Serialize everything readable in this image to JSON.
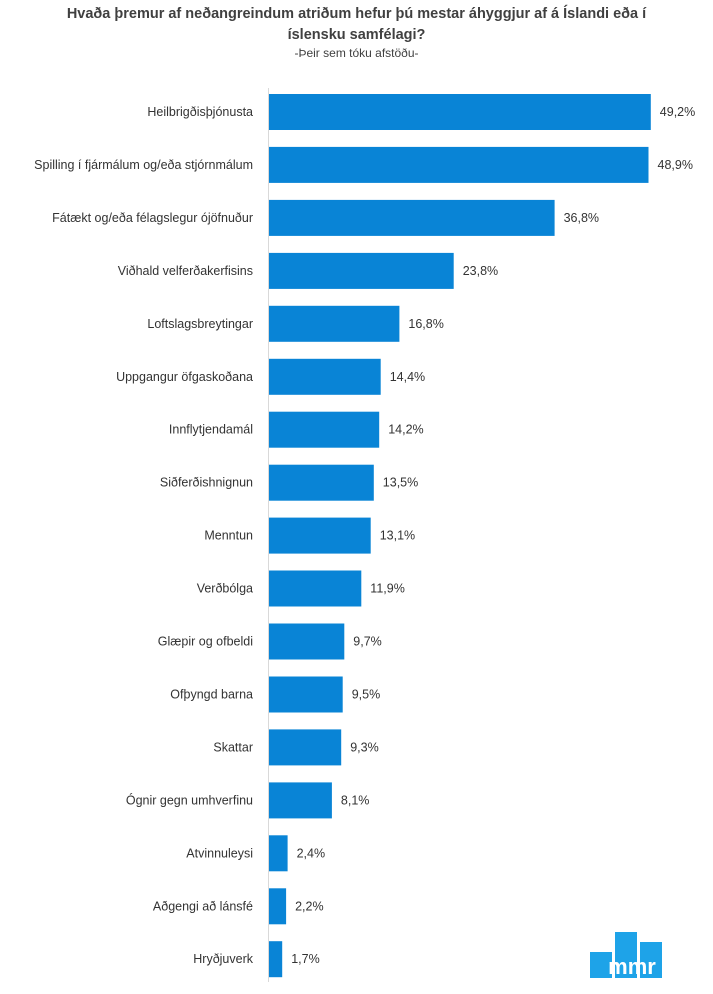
{
  "chart_data": {
    "type": "bar",
    "orientation": "horizontal",
    "title_lines": [
      "Hvaða þremur af neðangreindum atriðum hefur þú mestar áhyggjur af á Íslandi eða í",
      "íslensku samfélagi?"
    ],
    "subtitle": "-Þeir sem tóku afstöðu-",
    "categories": [
      "Heilbrigðisþjónusta",
      "Spilling í fjármálum og/eða stjórnmálum",
      "Fátækt og/eða félagslegur ójöfnuður",
      "Viðhald velferðakerfisins",
      "Loftslagsbreytingar",
      "Uppgangur öfgaskoðana",
      "Innflytjendamál",
      "Siðferðishnignun",
      "Menntun",
      "Verðbólga",
      "Glæpir og ofbeldi",
      "Ofþyngd barna",
      "Skattar",
      "Ógnir gegn umhverfinu",
      "Atvinnuleysi",
      "Aðgengi að lánsfé",
      "Hryðjuverk"
    ],
    "values": [
      49.2,
      48.9,
      36.8,
      23.8,
      16.8,
      14.4,
      14.2,
      13.5,
      13.1,
      11.9,
      9.7,
      9.5,
      9.3,
      8.1,
      2.4,
      2.2,
      1.7
    ],
    "value_labels": [
      "49,2%",
      "48,9%",
      "36,8%",
      "23,8%",
      "16,8%",
      "14,4%",
      "14,2%",
      "13,5%",
      "13,1%",
      "11,9%",
      "9,7%",
      "9,5%",
      "9,3%",
      "8,1%",
      "2,4%",
      "2,2%",
      "1,7%"
    ],
    "xlim": [
      0,
      50
    ],
    "grid": false,
    "legend": "none",
    "bar_color": "#0984d6"
  },
  "logo": {
    "icon": "mmr-logo-icon",
    "text": "mmr",
    "color": "#1ea3e8"
  }
}
